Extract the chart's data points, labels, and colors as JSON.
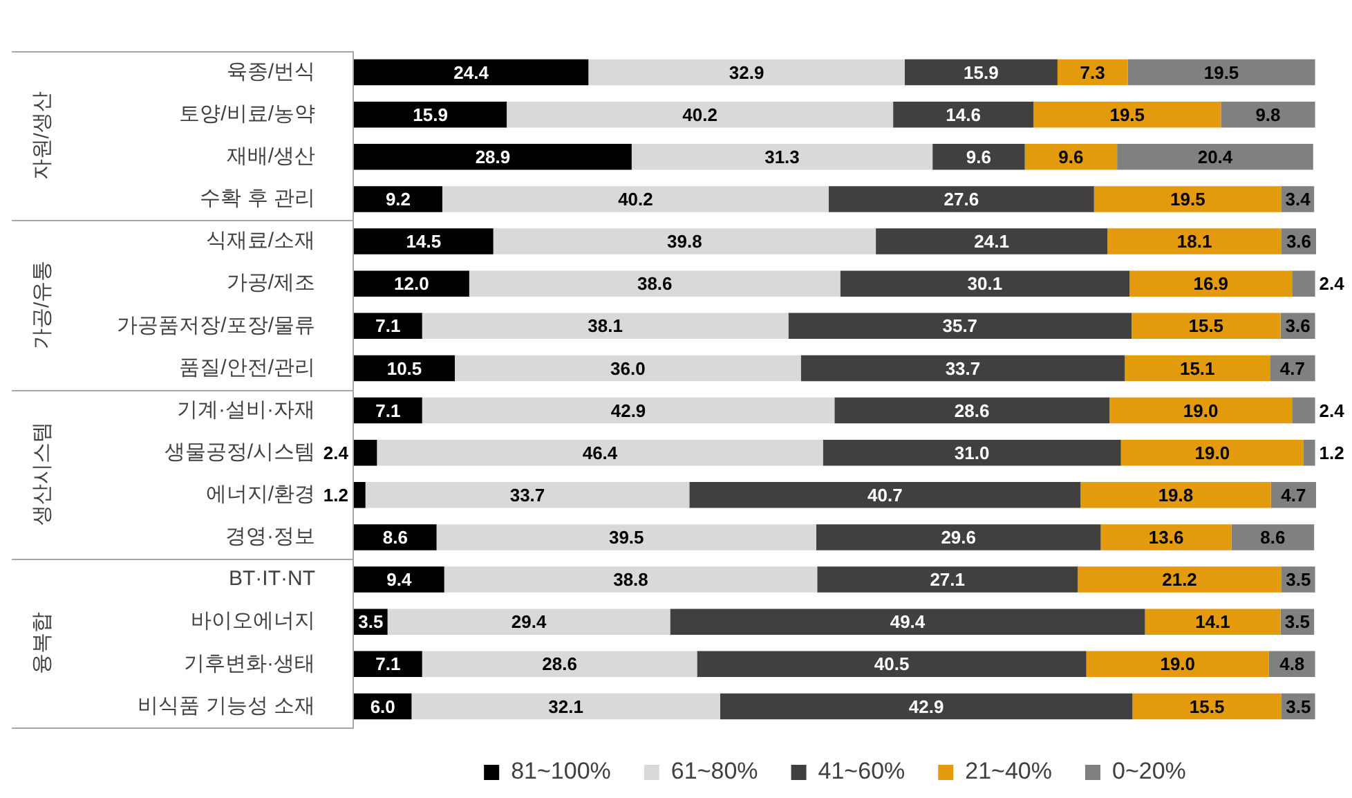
{
  "chart_data": {
    "type": "bar",
    "orientation": "horizontal",
    "stacked": true,
    "categories": [
      "육종/번식",
      "토양/비료/농약",
      "재배/생산",
      "수확 후 관리",
      "식재료/소재",
      "가공/제조",
      "가공품저장/포장/물류",
      "품질/안전/관리",
      "기계·설비·자재",
      "생물공정/시스템",
      "에너지/환경",
      "경영·정보",
      "BT·IT·NT",
      "바이오에너지",
      "기후변화·생태",
      "비식품 기능성 소재"
    ],
    "series": [
      {
        "name": "81~100%",
        "color": "#000000",
        "values": [
          24.4,
          15.9,
          28.9,
          9.2,
          14.5,
          12.0,
          7.1,
          10.5,
          7.1,
          2.4,
          1.2,
          8.6,
          9.4,
          3.5,
          7.1,
          6.0
        ],
        "value_labels": [
          "24.4",
          "15.9",
          "28.9",
          "9.2",
          "14.5",
          "12.0",
          "7.1",
          "10.5",
          "7.1",
          "2.4",
          "1.2",
          "8.6",
          "9.4",
          "3.5",
          "7.1",
          "6.0"
        ]
      },
      {
        "name": "61~80%",
        "color": "#d9d9d9",
        "values": [
          32.9,
          40.2,
          31.3,
          40.2,
          39.8,
          38.6,
          38.1,
          36.0,
          42.9,
          46.4,
          33.7,
          39.5,
          38.8,
          29.4,
          28.6,
          32.1
        ],
        "value_labels": [
          "32.9",
          "40.2",
          "31.3",
          "40.2",
          "39.8",
          "38.6",
          "38.1",
          "36.0",
          "42.9",
          "46.4",
          "33.7",
          "39.5",
          "38.8",
          "29.4",
          "28.6",
          "32.1"
        ]
      },
      {
        "name": "41~60%",
        "color": "#404040",
        "values": [
          15.9,
          14.6,
          9.6,
          27.6,
          24.1,
          30.1,
          35.7,
          33.7,
          28.6,
          31.0,
          40.7,
          29.6,
          27.1,
          49.4,
          40.5,
          42.9
        ],
        "value_labels": [
          "15.9",
          "14.6",
          "9.6",
          "27.6",
          "24.1",
          "30.1",
          "35.7",
          "33.7",
          "28.6",
          "31.0",
          "40.7",
          "29.6",
          "27.1",
          "49.4",
          "40.5",
          "42.9"
        ]
      },
      {
        "name": "21~40%",
        "color": "#e39a0c",
        "values": [
          7.3,
          19.5,
          9.6,
          19.5,
          18.1,
          16.9,
          15.5,
          15.1,
          19.0,
          19.0,
          19.8,
          13.6,
          21.2,
          14.1,
          19.0,
          15.5
        ],
        "value_labels": [
          "7.3",
          "19.5",
          "9.6",
          "19.5",
          "18.1",
          "16.9",
          "15.5",
          "15.1",
          "19.0",
          "19.0",
          "19.8",
          "13.6",
          "21.2",
          "14.1",
          "19.0",
          "15.5"
        ]
      },
      {
        "name": "0~20%",
        "color": "#808080",
        "values": [
          19.5,
          9.8,
          20.4,
          3.4,
          3.6,
          2.4,
          3.6,
          4.7,
          2.4,
          1.2,
          4.7,
          8.6,
          3.5,
          3.5,
          4.8,
          3.5
        ],
        "value_labels": [
          "19.5",
          "9.8",
          "20.4",
          "3.4",
          "3.6",
          "2.4",
          "3.6",
          "4.7",
          "2.4",
          "1.2",
          "4.7",
          "8.6",
          "3.5",
          "3.5",
          "4.8",
          "3.5"
        ]
      }
    ],
    "xlim": [
      0,
      100.1
    ],
    "tick_labels": "y",
    "legend": "bottom",
    "annotations": [
      "자원/생산",
      "가공/유통",
      "생산시스템",
      "융복합"
    ]
  }
}
